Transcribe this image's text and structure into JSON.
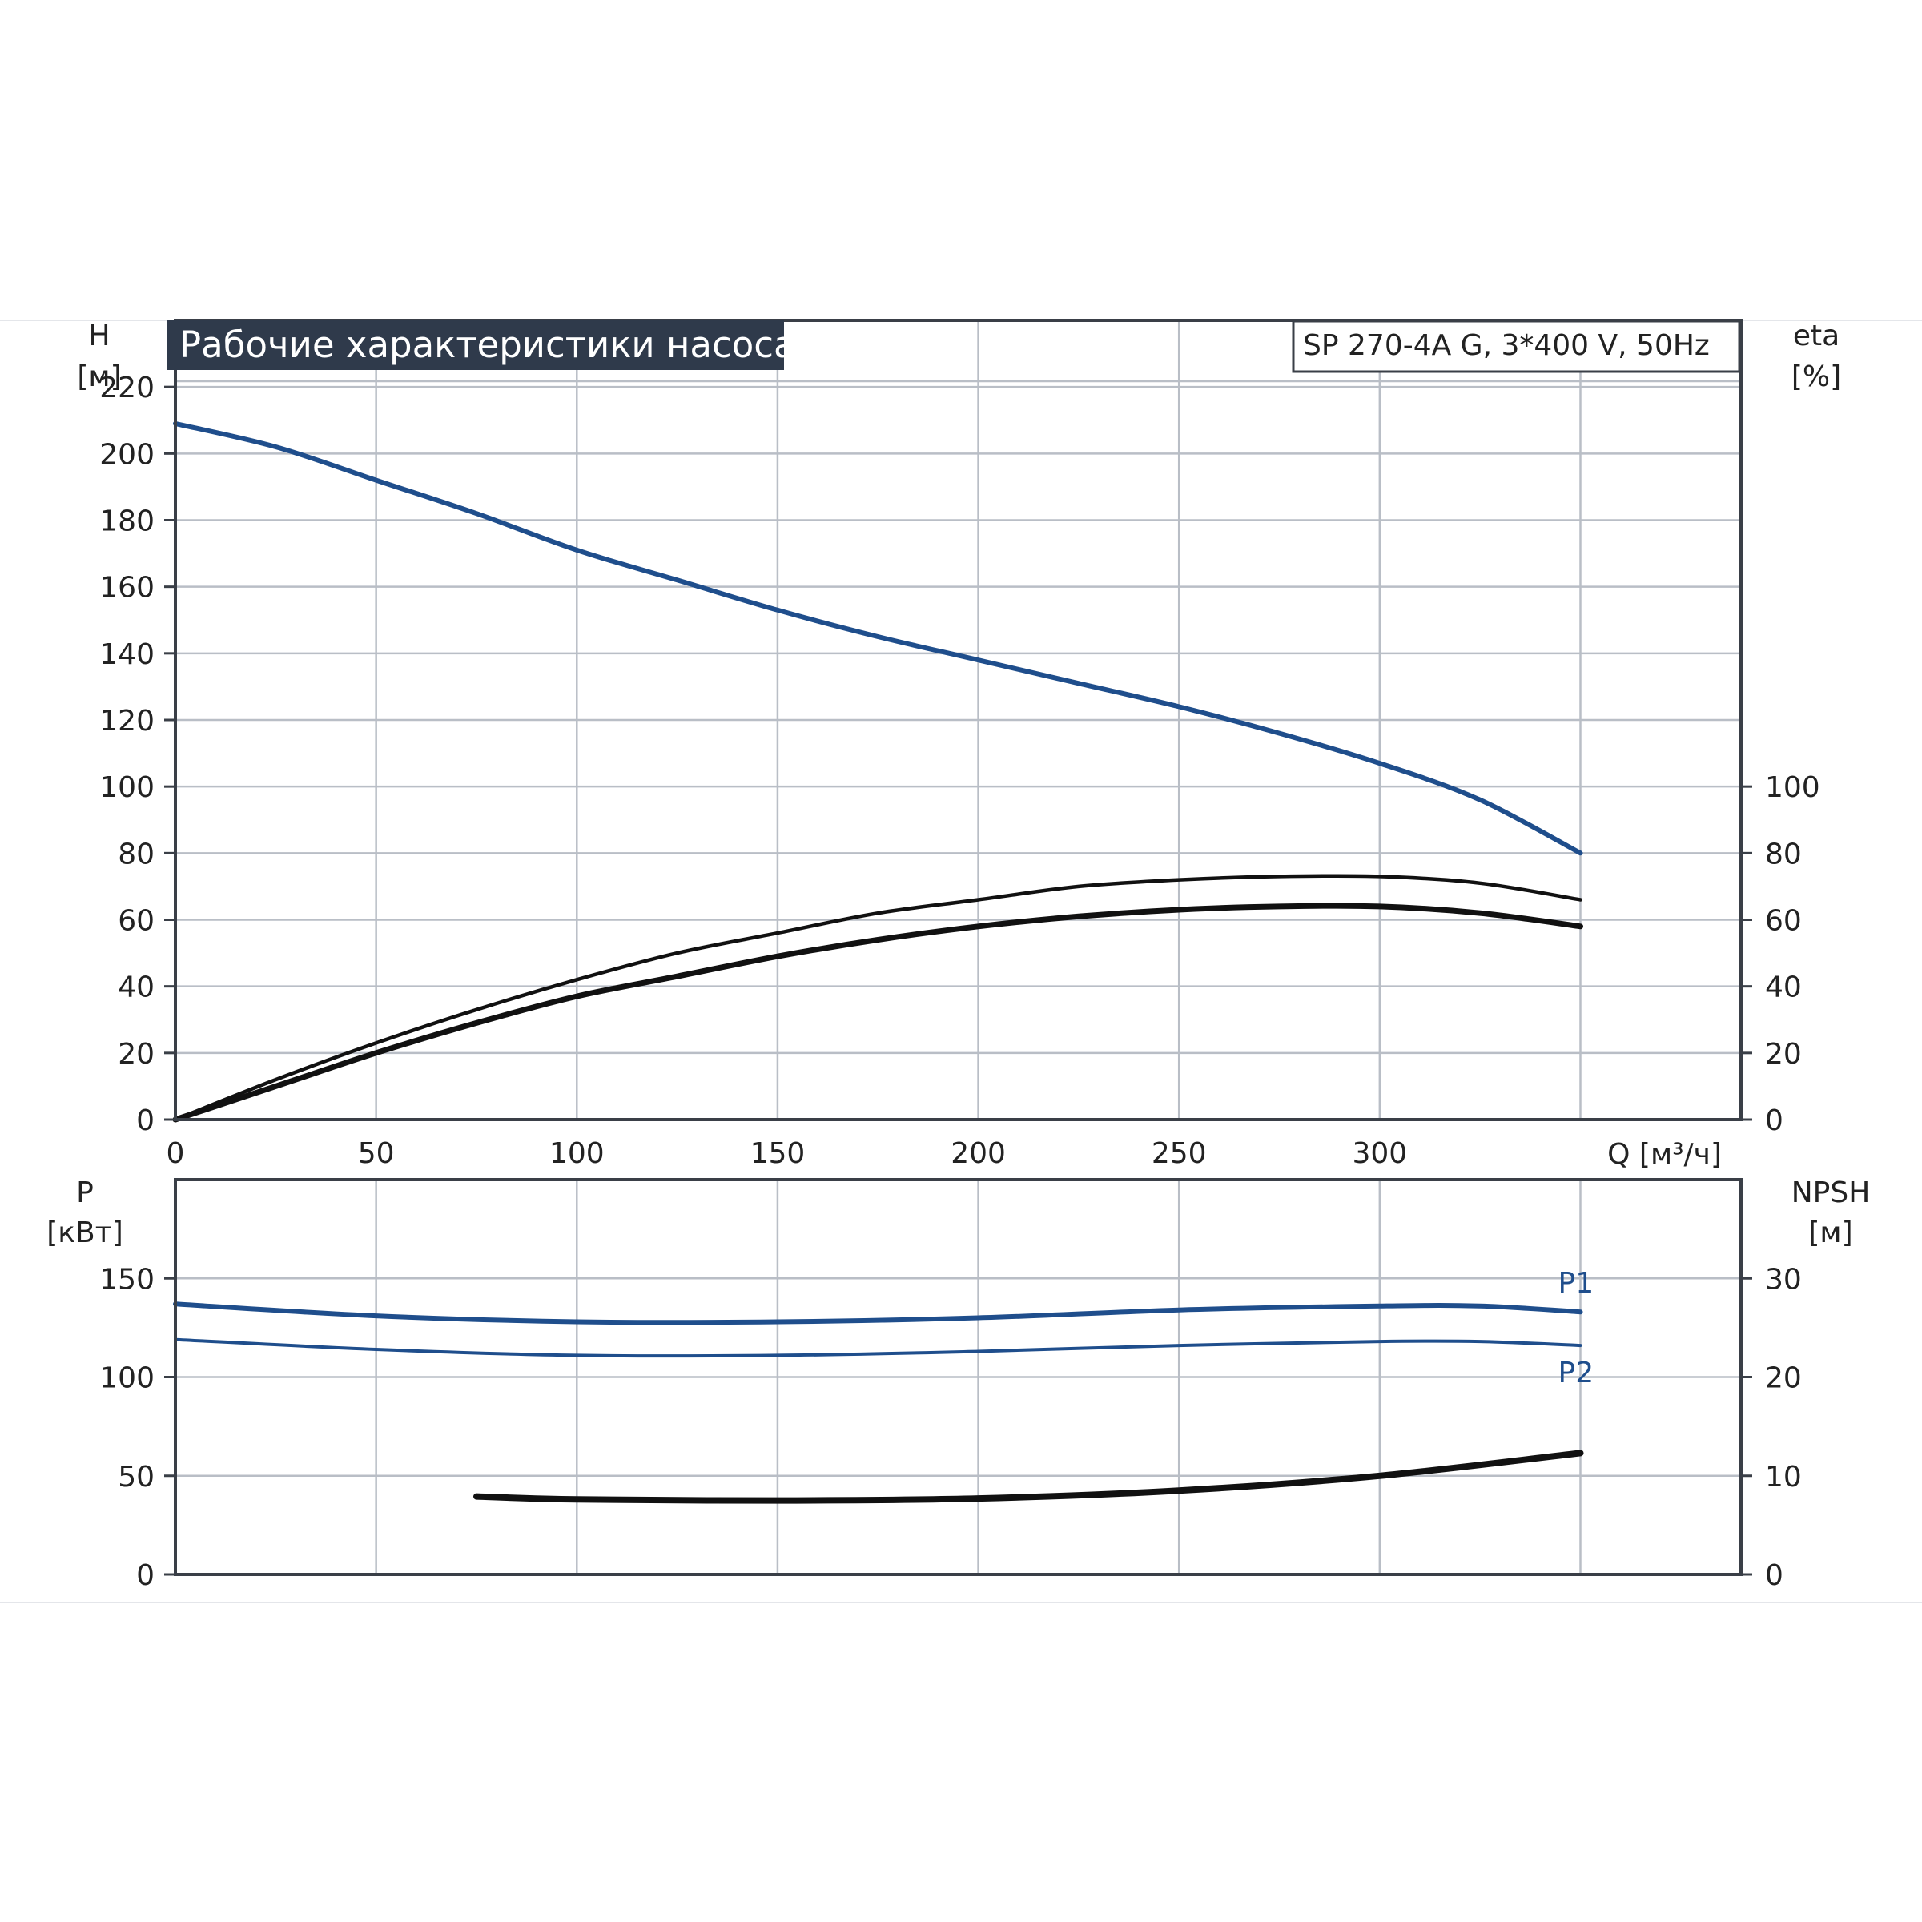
{
  "title": "Рабочие характеристики насоса",
  "model": "SP 270-4A G, 3*400 V, 50Hz",
  "colors": {
    "blue": "#1f4e8c",
    "black": "#111111",
    "title_bg": "#2f3a4b",
    "grid": "#b9bec6"
  },
  "chart_data": [
    {
      "type": "line",
      "name": "top",
      "xlabel": "Q [м³/ч]",
      "ylabel_left": "H",
      "ylabel_left_unit": "[м]",
      "ylabel_right": "eta",
      "ylabel_right_unit": "[%]",
      "xlim": [
        0,
        390
      ],
      "ylim_left": [
        0,
        240
      ],
      "ylim_right": [
        0,
        240
      ],
      "x_ticks": [
        0,
        50,
        100,
        150,
        200,
        250,
        300
      ],
      "y_ticks_left": [
        0,
        20,
        40,
        60,
        80,
        100,
        120,
        140,
        160,
        180,
        200,
        220
      ],
      "y_ticks_right": [
        0,
        20,
        40,
        60,
        80,
        100
      ],
      "grid": true,
      "series": [
        {
          "axis": "left",
          "color": "blue",
          "width": 6,
          "x": [
            0,
            25,
            50,
            75,
            100,
            125,
            150,
            175,
            200,
            225,
            250,
            275,
            300,
            325,
            350
          ],
          "y": [
            209,
            202,
            192,
            182,
            171,
            162,
            153,
            145,
            138,
            131,
            124,
            116,
            107,
            96,
            80
          ]
        },
        {
          "axis": "right",
          "color": "black",
          "width": 4.5,
          "x": [
            0,
            25,
            50,
            75,
            100,
            125,
            150,
            175,
            200,
            225,
            250,
            275,
            300,
            325,
            350
          ],
          "y": [
            0,
            12,
            23,
            33,
            42,
            50,
            56,
            62,
            66,
            70,
            72,
            73,
            73,
            71,
            66
          ]
        },
        {
          "axis": "right",
          "color": "black",
          "width": 7,
          "x": [
            0,
            25,
            50,
            75,
            100,
            125,
            150,
            175,
            200,
            225,
            250,
            275,
            300,
            325,
            350
          ],
          "y": [
            0,
            10,
            20,
            29,
            37,
            43,
            49,
            54,
            58,
            61,
            63,
            64,
            64,
            62,
            58
          ]
        }
      ]
    },
    {
      "type": "line",
      "name": "bottom",
      "ylabel_left": "P",
      "ylabel_left_unit": "[кВт]",
      "ylabel_right": "NPSH",
      "ylabel_right_unit": "[м]",
      "xlim": [
        0,
        390
      ],
      "ylim_left": [
        0,
        200
      ],
      "ylim_right": [
        0,
        40
      ],
      "y_ticks_left": [
        0,
        50,
        100,
        150
      ],
      "y_ticks_right": [
        0,
        10,
        20,
        30
      ],
      "grid": true,
      "series": [
        {
          "name": "P1",
          "axis": "left",
          "color": "blue",
          "width": 6,
          "x": [
            0,
            50,
            100,
            150,
            200,
            250,
            300,
            325,
            350
          ],
          "y": [
            137,
            131,
            128,
            128,
            130,
            134,
            136,
            136,
            133
          ]
        },
        {
          "name": "P2",
          "axis": "left",
          "color": "blue",
          "width": 4,
          "x": [
            0,
            50,
            100,
            150,
            200,
            250,
            300,
            325,
            350
          ],
          "y": [
            119,
            114,
            111,
            111,
            113,
            116,
            118,
            118,
            116
          ]
        },
        {
          "axis": "right",
          "color": "black",
          "width": 8,
          "x": [
            75,
            100,
            150,
            200,
            250,
            300,
            350
          ],
          "y": [
            7.9,
            7.6,
            7.5,
            7.7,
            8.5,
            10.0,
            12.3
          ]
        }
      ]
    }
  ]
}
